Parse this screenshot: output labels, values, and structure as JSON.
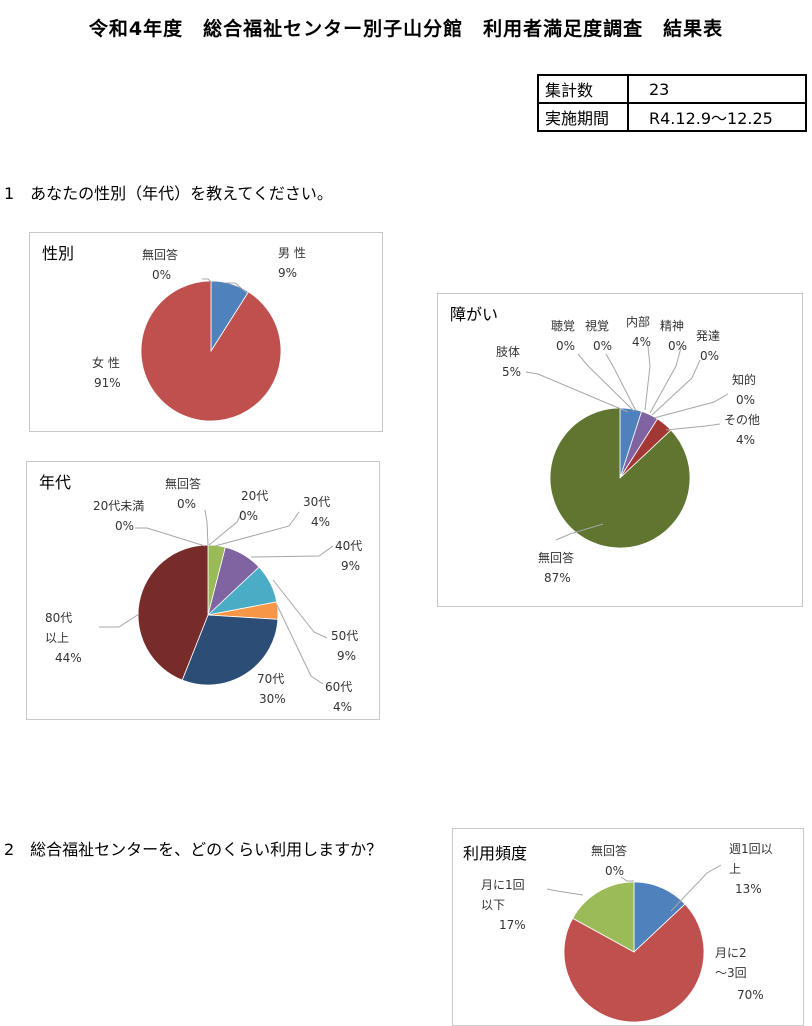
{
  "header": {
    "title": "令和4年度　総合福祉センター別子山分館　利用者満足度調査　結果表",
    "summary": [
      {
        "key": "集計数",
        "value": "23"
      },
      {
        "key": "実施期間",
        "value": "R4.12.9～12.25"
      }
    ]
  },
  "questions": [
    {
      "label": "1　あなたの性別（年代）を教えてください。"
    },
    {
      "label": "2　総合福祉センターを、どのくらい利用しますか？"
    }
  ],
  "chart_data": [
    {
      "type": "pie",
      "title": "性別",
      "slices": [
        {
          "label": "男 性",
          "value": 9,
          "pct": "9%",
          "color": "#4f81bd"
        },
        {
          "label": "女 性",
          "value": 91,
          "pct": "91%",
          "color": "#c0504d"
        },
        {
          "label": "無回答",
          "value": 0,
          "pct": "0%",
          "color": "#9bbb59"
        }
      ]
    },
    {
      "type": "pie",
      "title": "年代",
      "slices": [
        {
          "label": "20代未満",
          "value": 0,
          "pct": "0%",
          "color": "#4f81bd"
        },
        {
          "label": "20代",
          "value": 0,
          "pct": "0%",
          "color": "#c0504d"
        },
        {
          "label": "30代",
          "value": 4,
          "pct": "4%",
          "color": "#9bbb59"
        },
        {
          "label": "40代",
          "value": 9,
          "pct": "9%",
          "color": "#8064a2"
        },
        {
          "label": "50代",
          "value": 9,
          "pct": "9%",
          "color": "#4bacc6"
        },
        {
          "label": "60代",
          "value": 4,
          "pct": "4%",
          "color": "#f79646"
        },
        {
          "label": "70代",
          "value": 30,
          "pct": "30%",
          "color": "#2c4d75"
        },
        {
          "label": "80代以上",
          "value": 44,
          "pct": "44%",
          "color": "#772c2a"
        },
        {
          "label": "無回答",
          "value": 0,
          "pct": "0%",
          "color": "#5f7530"
        }
      ]
    },
    {
      "type": "pie",
      "title": "障がい",
      "slices": [
        {
          "label": "肢体",
          "value": 5,
          "pct": "5%",
          "color": "#4f81bd"
        },
        {
          "label": "聴覚",
          "value": 0,
          "pct": "0%",
          "color": "#c0504d"
        },
        {
          "label": "視覚",
          "value": 0,
          "pct": "0%",
          "color": "#9bbb59"
        },
        {
          "label": "内部",
          "value": 4,
          "pct": "4%",
          "color": "#8064a2"
        },
        {
          "label": "精神",
          "value": 0,
          "pct": "0%",
          "color": "#4bacc6"
        },
        {
          "label": "発達",
          "value": 0,
          "pct": "0%",
          "color": "#f79646"
        },
        {
          "label": "知的",
          "value": 0,
          "pct": "0%",
          "color": "#2c4d75"
        },
        {
          "label": "その他",
          "value": 4,
          "pct": "4%",
          "color": "#a33734"
        },
        {
          "label": "無回答",
          "value": 87,
          "pct": "87%",
          "color": "#5f7530"
        }
      ]
    },
    {
      "type": "pie",
      "title": "利用頻度",
      "slices": [
        {
          "label": "週1回以上",
          "value": 13,
          "pct": "13%",
          "color": "#4f81bd"
        },
        {
          "label": "月に2～3回",
          "value": 70,
          "pct": "70%",
          "color": "#c0504d"
        },
        {
          "label": "月に1回以下",
          "value": 17,
          "pct": "17%",
          "color": "#9bbb59"
        },
        {
          "label": "無回答",
          "value": 0,
          "pct": "0%",
          "color": "#8064a2"
        }
      ]
    }
  ]
}
